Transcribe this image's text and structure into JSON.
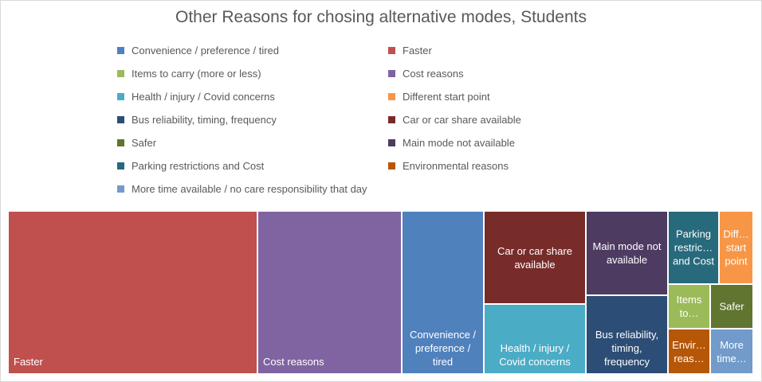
{
  "chart_data": {
    "type": "treemap",
    "title": "Other Reasons for chosing alternative modes, Students",
    "legend": [
      {
        "name": "Convenience / preference / tired",
        "color": "#4F81BD"
      },
      {
        "name": "Faster",
        "color": "#C0504D"
      },
      {
        "name": "Items to carry (more or less)",
        "color": "#9BBB59"
      },
      {
        "name": "Cost reasons",
        "color": "#8064A2"
      },
      {
        "name": "Health / injury / Covid concerns",
        "color": "#4BACC6"
      },
      {
        "name": "Different start point",
        "color": "#F79646"
      },
      {
        "name": "Bus reliability, timing, frequency",
        "color": "#2C4D75"
      },
      {
        "name": "Car or car share available",
        "color": "#772C2A"
      },
      {
        "name": "Safer",
        "color": "#5F7530"
      },
      {
        "name": "Main mode not available",
        "color": "#4D3B62"
      },
      {
        "name": "Parking restrictions and Cost",
        "color": "#276A7C"
      },
      {
        "name": "Environmental reasons",
        "color": "#B65708"
      },
      {
        "name": "More time available / no care responsibility that day",
        "color": "#729ACA"
      }
    ],
    "tiles": [
      {
        "category": "Faster",
        "label": "Faster",
        "value": 63
      },
      {
        "category": "Cost reasons",
        "label": "Cost reasons",
        "value": 36
      },
      {
        "category": "Convenience / preference / tired",
        "label": "Convenience / preference / tired",
        "value": 20
      },
      {
        "category": "Car or car share available",
        "label": "Car or car share available",
        "value": 11
      },
      {
        "category": "Health / injury / Covid concerns",
        "label": "Health / injury / Covid concerns",
        "value": 10
      },
      {
        "category": "Main mode not available",
        "label": "Main mode not available",
        "value": 8
      },
      {
        "category": "Bus reliability, timing, frequency",
        "label": "Bus reliability, timing, frequency",
        "value": 8
      },
      {
        "category": "Parking restrictions and Cost",
        "label": "Parking restric… and Cost",
        "value": 4
      },
      {
        "category": "Different start point",
        "label": "Diff… start point",
        "value": 3
      },
      {
        "category": "Items to carry (more or less)",
        "label": "Items to…",
        "value": 2
      },
      {
        "category": "Safer",
        "label": "Safer",
        "value": 2
      },
      {
        "category": "Environmental reasons",
        "label": "Envir… reas…",
        "value": 2
      },
      {
        "category": "More time available / no care responsibility that day",
        "label": "More time…",
        "value": 2
      }
    ]
  }
}
